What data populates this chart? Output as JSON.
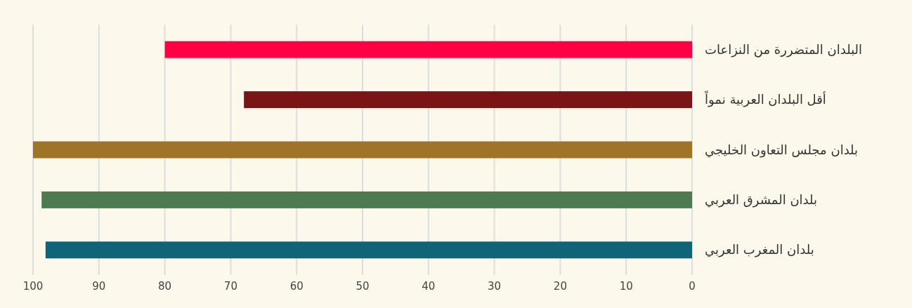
{
  "chart_data": {
    "type": "bar",
    "orientation": "horizontal",
    "categories": [
      "البلدان المتضررة من النزاعات",
      "أقل البلدان العربية نمواً",
      "بلدان مجلس التعاون الخليجي",
      "بلدان المشرق العربي",
      "بلدان المغرب العربي"
    ],
    "values": [
      80,
      68,
      100,
      98.7,
      98.1
    ],
    "colors": [
      "#ff0044",
      "#7b1416",
      "#a07428",
      "#4e7a50",
      "#106478"
    ],
    "xlim": [
      100,
      0
    ],
    "xticks": [
      100,
      90,
      80,
      70,
      60,
      50,
      40,
      30,
      20,
      10,
      0
    ],
    "grid": "x"
  }
}
